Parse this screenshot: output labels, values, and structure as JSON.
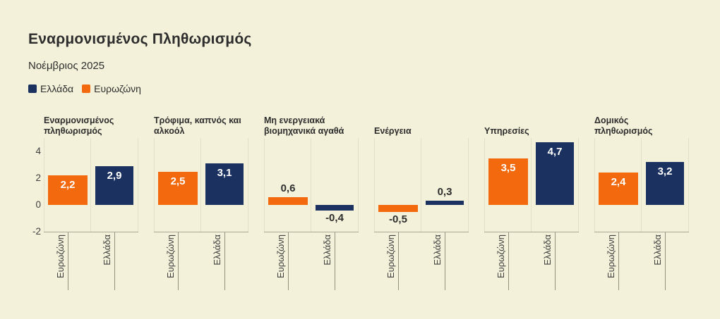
{
  "header": {
    "title": "Εναρμονισμένος Πληθωρισμός",
    "subtitle": "Νοέμβριος 2025"
  },
  "legend": {
    "items": [
      {
        "label": "Ελλάδα",
        "color": "#1b3261"
      },
      {
        "label": "Ευρωζώνη",
        "color": "#f3690e"
      }
    ]
  },
  "colors": {
    "background": "#f4f1da",
    "greece_bar": "#1b3261",
    "eurozone_bar": "#f3690e",
    "axis_line": "#a9a694",
    "tick_line": "#94917f",
    "gridline": "#e2dfc8",
    "text_dark": "#2d2d2d",
    "label_inside_bar": "#ffffff"
  },
  "chart_data": {
    "type": "bar",
    "layout": "small-multiples",
    "title": "Εναρμονισμένος Πληθωρισμός",
    "subtitle": "Νοέμβριος 2025",
    "categories": [
      "Ευρωζώνη",
      "Ελλάδα"
    ],
    "series_colors": [
      "#f3690e",
      "#1b3261"
    ],
    "y_ticks": [
      4,
      2,
      0,
      -2
    ],
    "ylim": [
      -2,
      5
    ],
    "grid": "category-boundary vertical lines only",
    "legend_position": "top-left",
    "panels": [
      {
        "title": "Εναρμονισμένος πληθωρισμός",
        "values": [
          2.2,
          2.9
        ],
        "labels": [
          "2,2",
          "2,9"
        ]
      },
      {
        "title": "Τρόφιμα, καπνός και αλκοόλ",
        "values": [
          2.5,
          3.1
        ],
        "labels": [
          "2,5",
          "3,1"
        ]
      },
      {
        "title": "Μη ενεργειακά βιομηχανικά αγαθά",
        "values": [
          0.6,
          -0.4
        ],
        "labels": [
          "0,6",
          "-0,4"
        ]
      },
      {
        "title": "Ενέργεια",
        "values": [
          -0.5,
          0.3
        ],
        "labels": [
          "-0,5",
          "0,3"
        ]
      },
      {
        "title": "Υπηρεσίες",
        "values": [
          3.5,
          4.7
        ],
        "labels": [
          "3,5",
          "4,7"
        ]
      },
      {
        "title": "Δομικός πληθωρισμός",
        "values": [
          2.4,
          3.2
        ],
        "labels": [
          "2,4",
          "3,2"
        ]
      }
    ]
  }
}
